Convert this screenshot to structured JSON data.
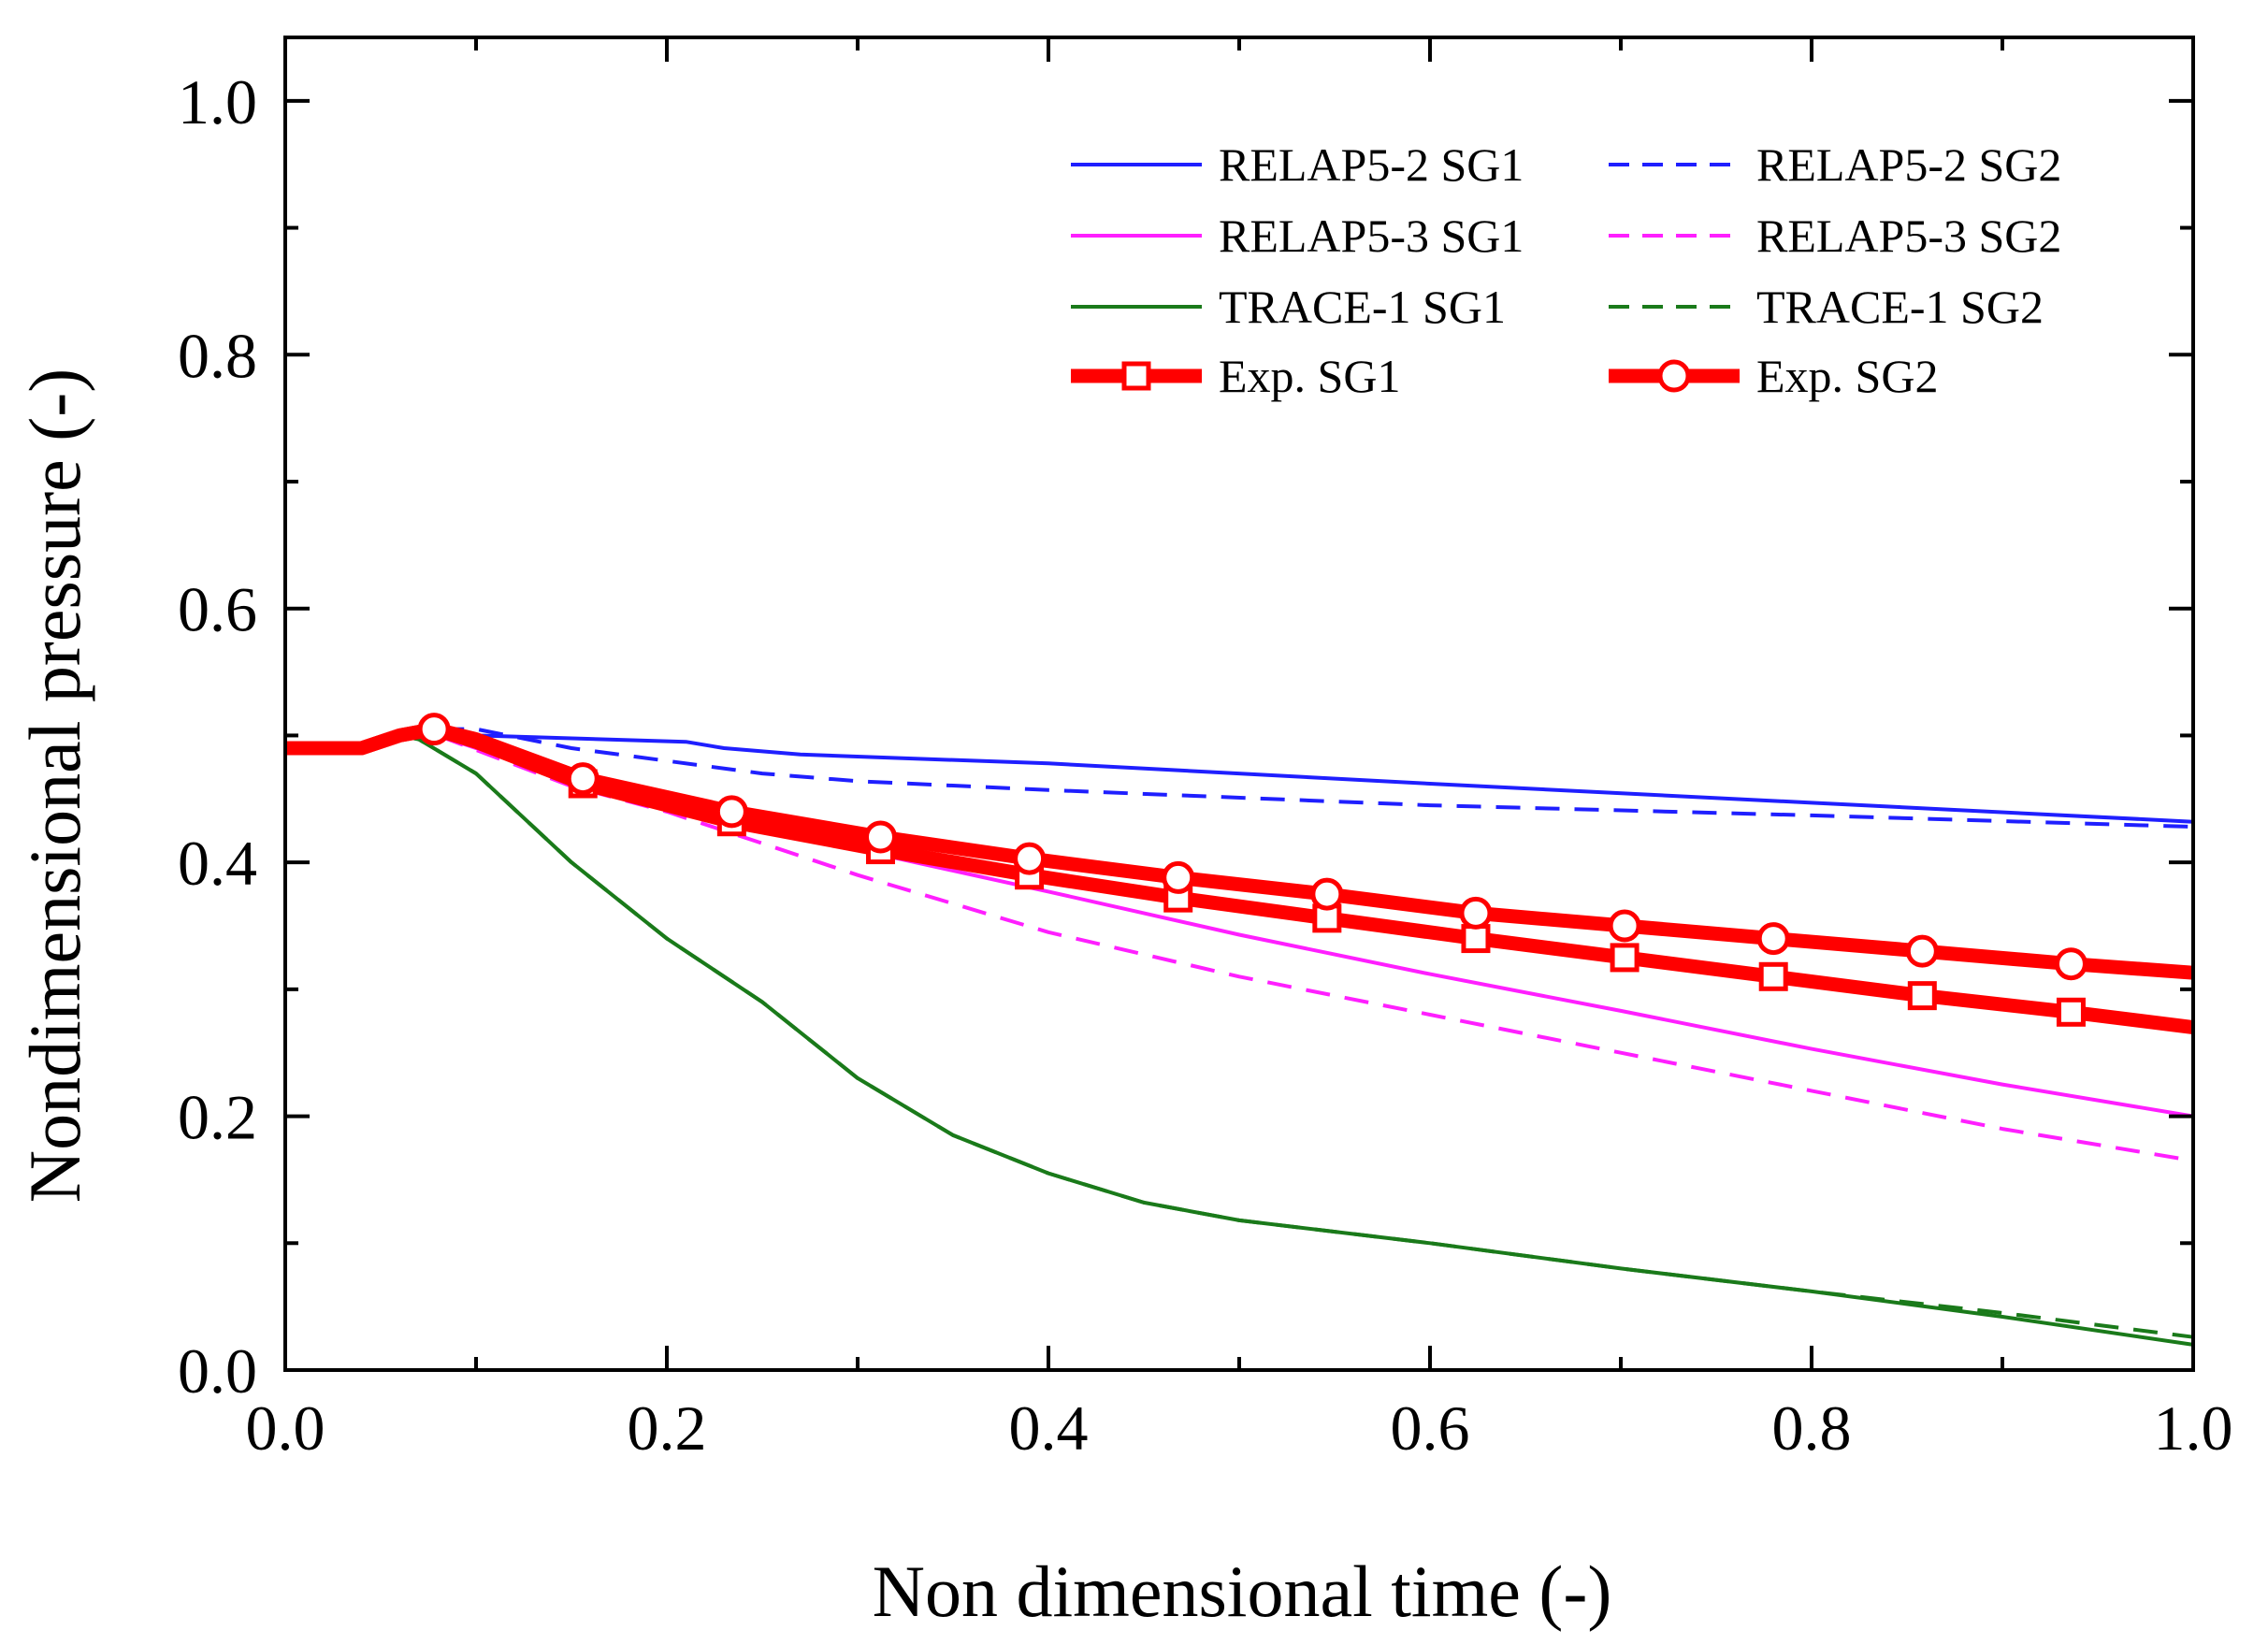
{
  "chart_data": {
    "type": "line",
    "title": "",
    "xlabel": "Non dimensional time (-)",
    "ylabel": "Nondimensional pressure (-)",
    "xlim": [
      0.0,
      1.0
    ],
    "ylim": [
      0.0,
      1.05
    ],
    "xticks": [
      "0.0",
      "0.2",
      "0.4",
      "0.6",
      "0.8",
      "1.0"
    ],
    "yticks": [
      "0.0",
      "0.2",
      "0.4",
      "0.6",
      "0.8",
      "1.0"
    ],
    "grid": false,
    "legend_position": "top-right",
    "series": [
      {
        "name": "RELAP5-2 SG1",
        "color": "#1f1fff",
        "style": "solid",
        "points": [
          [
            0.0,
            0.49
          ],
          [
            0.04,
            0.49
          ],
          [
            0.06,
            0.5
          ],
          [
            0.08,
            0.5
          ],
          [
            0.1,
            0.5
          ],
          [
            0.21,
            0.495
          ],
          [
            0.23,
            0.49
          ],
          [
            0.27,
            0.485
          ],
          [
            0.4,
            0.478
          ],
          [
            0.6,
            0.462
          ],
          [
            0.8,
            0.447
          ],
          [
            1.0,
            0.432
          ]
        ]
      },
      {
        "name": "RELAP5-2 SG2",
        "color": "#1f1fff",
        "style": "dashed",
        "points": [
          [
            0.0,
            0.49
          ],
          [
            0.04,
            0.49
          ],
          [
            0.06,
            0.5
          ],
          [
            0.08,
            0.505
          ],
          [
            0.1,
            0.505
          ],
          [
            0.15,
            0.49
          ],
          [
            0.2,
            0.48
          ],
          [
            0.25,
            0.47
          ],
          [
            0.3,
            0.464
          ],
          [
            0.4,
            0.457
          ],
          [
            0.6,
            0.445
          ],
          [
            0.8,
            0.437
          ],
          [
            1.0,
            0.428
          ]
        ]
      },
      {
        "name": "RELAP5-3 SG1",
        "color": "#ff1fff",
        "style": "solid",
        "points": [
          [
            0.0,
            0.49
          ],
          [
            0.04,
            0.49
          ],
          [
            0.06,
            0.5
          ],
          [
            0.08,
            0.5
          ],
          [
            0.15,
            0.465
          ],
          [
            0.2,
            0.445
          ],
          [
            0.3,
            0.41
          ],
          [
            0.4,
            0.377
          ],
          [
            0.5,
            0.343
          ],
          [
            0.6,
            0.312
          ],
          [
            0.7,
            0.283
          ],
          [
            0.8,
            0.253
          ],
          [
            0.9,
            0.225
          ],
          [
            1.0,
            0.2
          ]
        ]
      },
      {
        "name": "RELAP5-3 SG2",
        "color": "#ff1fff",
        "style": "dashed",
        "points": [
          [
            0.0,
            0.49
          ],
          [
            0.04,
            0.49
          ],
          [
            0.06,
            0.5
          ],
          [
            0.08,
            0.5
          ],
          [
            0.15,
            0.46
          ],
          [
            0.2,
            0.44
          ],
          [
            0.3,
            0.39
          ],
          [
            0.4,
            0.345
          ],
          [
            0.5,
            0.31
          ],
          [
            0.6,
            0.28
          ],
          [
            0.7,
            0.25
          ],
          [
            0.8,
            0.22
          ],
          [
            0.9,
            0.19
          ],
          [
            1.0,
            0.165
          ]
        ]
      },
      {
        "name": "TRACE-1 SG1",
        "color": "#1a7a1a",
        "style": "solid",
        "points": [
          [
            0.0,
            0.49
          ],
          [
            0.04,
            0.49
          ],
          [
            0.06,
            0.5
          ],
          [
            0.07,
            0.497
          ],
          [
            0.1,
            0.47
          ],
          [
            0.15,
            0.4
          ],
          [
            0.2,
            0.34
          ],
          [
            0.25,
            0.29
          ],
          [
            0.3,
            0.23
          ],
          [
            0.35,
            0.185
          ],
          [
            0.4,
            0.155
          ],
          [
            0.45,
            0.132
          ],
          [
            0.5,
            0.118
          ],
          [
            0.6,
            0.1
          ],
          [
            0.7,
            0.08
          ],
          [
            0.8,
            0.062
          ],
          [
            0.9,
            0.042
          ],
          [
            1.0,
            0.02
          ]
        ]
      },
      {
        "name": "TRACE-1 SG2",
        "color": "#1a7a1a",
        "style": "dashed",
        "points": [
          [
            0.0,
            0.49
          ],
          [
            0.04,
            0.49
          ],
          [
            0.06,
            0.5
          ],
          [
            0.07,
            0.497
          ],
          [
            0.1,
            0.47
          ],
          [
            0.15,
            0.4
          ],
          [
            0.2,
            0.34
          ],
          [
            0.25,
            0.29
          ],
          [
            0.3,
            0.23
          ],
          [
            0.35,
            0.185
          ],
          [
            0.4,
            0.155
          ],
          [
            0.45,
            0.132
          ],
          [
            0.5,
            0.118
          ],
          [
            0.6,
            0.1
          ],
          [
            0.7,
            0.08
          ],
          [
            0.8,
            0.062
          ],
          [
            0.9,
            0.045
          ],
          [
            1.0,
            0.026
          ]
        ]
      },
      {
        "name": "Exp. SG1",
        "color": "#ff0000",
        "style": "thick-square",
        "points": [
          [
            0.0,
            0.49
          ],
          [
            0.04,
            0.49
          ],
          [
            0.06,
            0.5
          ],
          [
            0.078,
            0.505
          ],
          [
            0.1,
            0.495
          ],
          [
            0.156,
            0.462
          ],
          [
            0.234,
            0.432
          ],
          [
            0.312,
            0.41
          ],
          [
            0.39,
            0.39
          ],
          [
            0.468,
            0.372
          ],
          [
            0.546,
            0.356
          ],
          [
            0.624,
            0.34
          ],
          [
            0.702,
            0.325
          ],
          [
            0.78,
            0.31
          ],
          [
            0.858,
            0.295
          ],
          [
            0.936,
            0.282
          ],
          [
            1.0,
            0.27
          ]
        ],
        "markers": [
          [
            0.156,
            0.462
          ],
          [
            0.234,
            0.432
          ],
          [
            0.312,
            0.41
          ],
          [
            0.39,
            0.39
          ],
          [
            0.468,
            0.372
          ],
          [
            0.546,
            0.356
          ],
          [
            0.624,
            0.34
          ],
          [
            0.702,
            0.325
          ],
          [
            0.78,
            0.31
          ],
          [
            0.858,
            0.295
          ],
          [
            0.936,
            0.282
          ]
        ]
      },
      {
        "name": "Exp. SG2",
        "color": "#ff0000",
        "style": "thick-circle",
        "points": [
          [
            0.0,
            0.49
          ],
          [
            0.04,
            0.49
          ],
          [
            0.06,
            0.5
          ],
          [
            0.078,
            0.505
          ],
          [
            0.1,
            0.497
          ],
          [
            0.156,
            0.466
          ],
          [
            0.234,
            0.44
          ],
          [
            0.312,
            0.42
          ],
          [
            0.39,
            0.403
          ],
          [
            0.468,
            0.388
          ],
          [
            0.546,
            0.375
          ],
          [
            0.624,
            0.36
          ],
          [
            0.702,
            0.35
          ],
          [
            0.78,
            0.34
          ],
          [
            0.858,
            0.33
          ],
          [
            0.936,
            0.32
          ],
          [
            1.0,
            0.313
          ]
        ],
        "markers": [
          [
            0.078,
            0.505
          ],
          [
            0.156,
            0.466
          ],
          [
            0.234,
            0.44
          ],
          [
            0.312,
            0.42
          ],
          [
            0.39,
            0.403
          ],
          [
            0.468,
            0.388
          ],
          [
            0.546,
            0.375
          ],
          [
            0.624,
            0.36
          ],
          [
            0.702,
            0.35
          ],
          [
            0.78,
            0.34
          ],
          [
            0.858,
            0.33
          ],
          [
            0.936,
            0.32
          ]
        ]
      }
    ]
  }
}
